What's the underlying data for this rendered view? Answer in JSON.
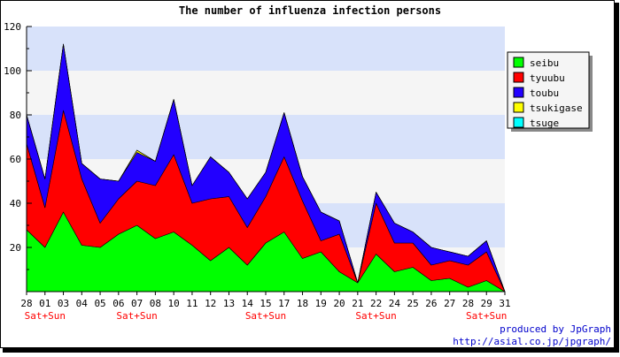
{
  "chart_data": {
    "type": "area",
    "stacked": true,
    "title": "The number of influenza infection persons",
    "xlabel": "",
    "ylabel": "",
    "ylim": [
      0,
      120
    ],
    "yticks": [
      20,
      40,
      60,
      80,
      100,
      120
    ],
    "grid": true,
    "band_colors": [
      "#d8e2fa",
      "#f5f5f5"
    ],
    "legend_position": "right",
    "categories": [
      "28",
      "01",
      "03",
      "04",
      "05",
      "06",
      "07",
      "08",
      "10",
      "11",
      "12",
      "13",
      "14",
      "15",
      "17",
      "18",
      "19",
      "20",
      "21",
      "22",
      "24",
      "25",
      "26",
      "27",
      "28",
      "29",
      "31"
    ],
    "weekend_label": "Sat+Sun",
    "weekend_indices": [
      1,
      6,
      13,
      19,
      25
    ],
    "series": [
      {
        "name": "seibu",
        "color": "#00ff00",
        "values": [
          28,
          20,
          36,
          21,
          20,
          26,
          30,
          24,
          27,
          21,
          14,
          20,
          12,
          22,
          27,
          15,
          18,
          9,
          4,
          17,
          9,
          11,
          5,
          6,
          2,
          5,
          0
        ]
      },
      {
        "name": "tyuubu",
        "color": "#ff0000",
        "values": [
          39,
          18,
          46,
          30,
          11,
          16,
          20,
          24,
          35,
          19,
          28,
          23,
          17,
          21,
          34,
          26,
          5,
          17,
          0,
          23,
          13,
          11,
          7,
          8,
          10,
          13,
          0
        ]
      },
      {
        "name": "toubu",
        "color": "#2200ff",
        "values": [
          13,
          13,
          30,
          7,
          20,
          8,
          13,
          11,
          25,
          8,
          19,
          11,
          13,
          11,
          20,
          11,
          13,
          6,
          0,
          5,
          9,
          5,
          8,
          4,
          4,
          5,
          0
        ]
      },
      {
        "name": "tsukigase",
        "color": "#ffff00",
        "values": [
          0,
          0,
          0,
          0,
          0,
          0,
          1,
          0,
          0,
          0,
          0,
          0,
          0,
          0,
          0,
          0,
          0,
          0,
          0,
          0,
          0,
          0,
          0,
          0,
          0,
          0,
          0
        ]
      },
      {
        "name": "tsuge",
        "color": "#00ffff",
        "values": [
          0,
          0,
          0,
          0,
          0,
          0,
          0,
          0,
          0,
          0,
          0,
          0,
          0,
          0,
          0,
          0,
          0,
          0,
          0,
          0,
          0,
          0,
          0,
          0,
          0,
          0,
          0
        ]
      }
    ]
  },
  "credit": {
    "line1": "produced by JpGraph",
    "line2": "http://asial.co.jp/jpgraph/"
  }
}
